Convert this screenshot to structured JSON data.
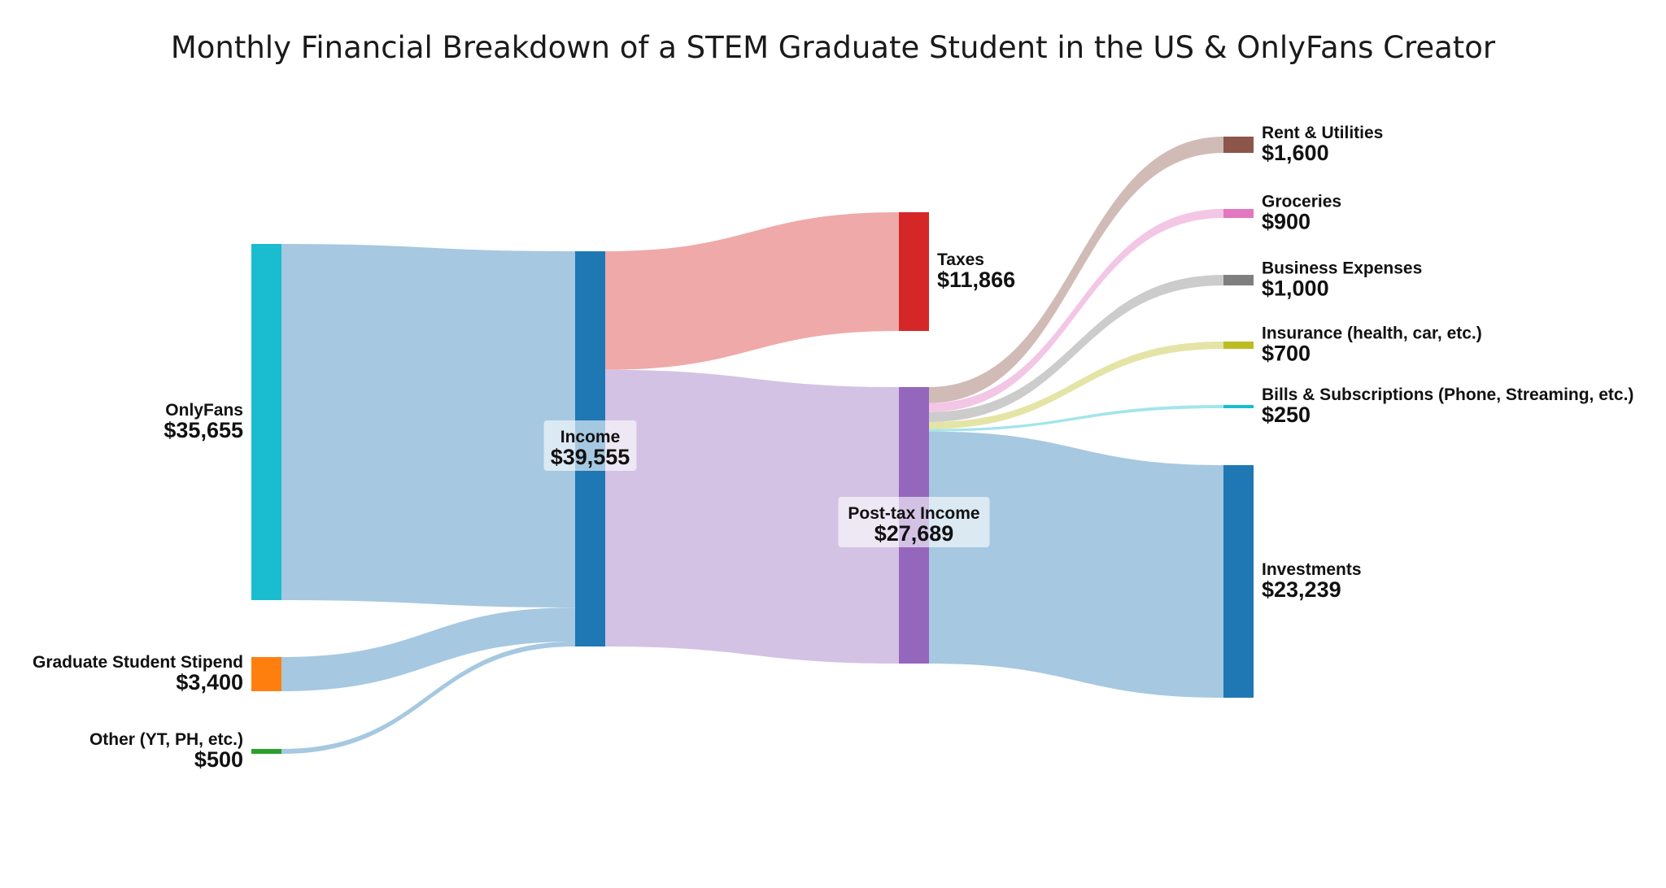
{
  "chart_data": {
    "type": "sankey",
    "title": "Monthly Financial Breakdown of a STEM Graduate Student in the US & OnlyFans Creator",
    "nodes": [
      {
        "id": "onlyfans",
        "name": "OnlyFans",
        "value": 35655,
        "value_label": "$35,655",
        "color": "#1ABDD0"
      },
      {
        "id": "stipend",
        "name": "Graduate Student Stipend",
        "value": 3400,
        "value_label": "$3,400",
        "color": "#FF7F0E"
      },
      {
        "id": "other",
        "name": "Other (YT, PH, etc.)",
        "value": 500,
        "value_label": "$500",
        "color": "#2CA02C"
      },
      {
        "id": "income",
        "name": "Income",
        "value": 39555,
        "value_label": "$39,555",
        "color": "#1F77B4"
      },
      {
        "id": "taxes",
        "name": "Taxes",
        "value": 11866,
        "value_label": "$11,866",
        "color": "#D62728"
      },
      {
        "id": "posttax",
        "name": "Post-tax Income",
        "value": 27689,
        "value_label": "$27,689",
        "color": "#9467BD"
      },
      {
        "id": "rent",
        "name": "Rent & Utilities",
        "value": 1600,
        "value_label": "$1,600",
        "color": "#8C564B"
      },
      {
        "id": "groceries",
        "name": "Groceries",
        "value": 900,
        "value_label": "$900",
        "color": "#E377C2"
      },
      {
        "id": "business",
        "name": "Business Expenses",
        "value": 1000,
        "value_label": "$1,000",
        "color": "#7F7F7F"
      },
      {
        "id": "insurance",
        "name": "Insurance (health, car, etc.)",
        "value": 700,
        "value_label": "$700",
        "color": "#BCBD22"
      },
      {
        "id": "bills",
        "name": "Bills & Subscriptions (Phone, Streaming, etc.)",
        "value": 250,
        "value_label": "$250",
        "color": "#17BECF"
      },
      {
        "id": "investments",
        "name": "Investments",
        "value": 23239,
        "value_label": "$23,239",
        "color": "#1F77B4"
      }
    ],
    "links": [
      {
        "source": "onlyfans",
        "target": "income",
        "value": 35655,
        "color": "#A6C8E1"
      },
      {
        "source": "stipend",
        "target": "income",
        "value": 3400,
        "color": "#A6C8E1"
      },
      {
        "source": "other",
        "target": "income",
        "value": 500,
        "color": "#A6C8E1"
      },
      {
        "source": "income",
        "target": "taxes",
        "value": 11866,
        "color": "#EFA9A9"
      },
      {
        "source": "income",
        "target": "posttax",
        "value": 27689,
        "color": "#D4C2E4"
      },
      {
        "source": "posttax",
        "target": "rent",
        "value": 1600,
        "color": "#D1BBB7"
      },
      {
        "source": "posttax",
        "target": "groceries",
        "value": 900,
        "color": "#F3C6E5"
      },
      {
        "source": "posttax",
        "target": "business",
        "value": 1000,
        "color": "#CCCCCC"
      },
      {
        "source": "posttax",
        "target": "insurance",
        "value": 700,
        "color": "#E4E4A6"
      },
      {
        "source": "posttax",
        "target": "bills",
        "value": 250,
        "color": "#A3E5EC"
      },
      {
        "source": "posttax",
        "target": "investments",
        "value": 23239,
        "color": "#A6C8E1"
      }
    ]
  }
}
